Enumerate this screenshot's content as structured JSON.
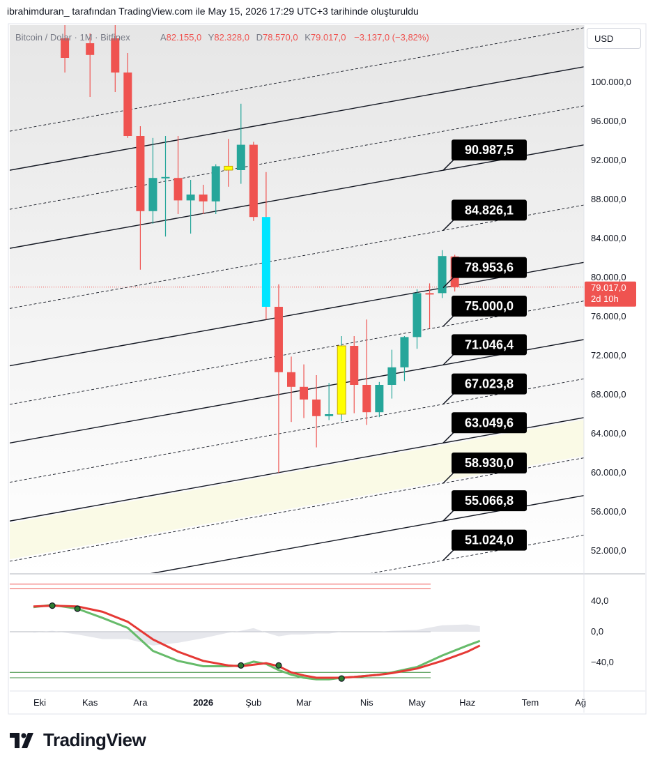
{
  "header": {
    "attribution": "ibrahimduran_ tarafından TradingView.com ile May 15, 2026 17:29 UTC+3 tarihinde oluşturuldu"
  },
  "legend": {
    "symbol": "Bitcoin / Dolar · 1M · Bitfinex",
    "a_label": "A",
    "a_value": "82.155,0",
    "y_label": "Y",
    "y_value": "82.328,0",
    "d_label": "D",
    "d_value": "78.570,0",
    "k_label": "K",
    "k_value": "79.017,0",
    "change": "−3.137,0 (−3,82%)"
  },
  "currency_button": "USD",
  "last_price": {
    "value": "79.017,0",
    "countdown": "2d 10h",
    "price": 79017
  },
  "colors": {
    "up": "#26a69a",
    "down": "#ef5350",
    "highlight_up": "#00e5ff",
    "highlight_yellow": "#ffff00",
    "label_bg": "#000000",
    "band_fill": "#fafae6",
    "rsi_green": "#66bb6a",
    "rsi_red": "#e53935"
  },
  "footer": {
    "brand": "TradingView",
    "icon": "tradingview-logo-icon"
  },
  "chart_data": {
    "type": "candlestick",
    "symbol": "Bitcoin / Dolar",
    "y_axis_ticks": [
      {
        "v": 100000,
        "label": "100.000,0"
      },
      {
        "v": 96000,
        "label": "96.000,0"
      },
      {
        "v": 92000,
        "label": "92.000,0"
      },
      {
        "v": 88000,
        "label": "88.000,0"
      },
      {
        "v": 84000,
        "label": "84.000,0"
      },
      {
        "v": 80000,
        "label": "80.000,0"
      },
      {
        "v": 76000,
        "label": "76.000,0"
      },
      {
        "v": 72000,
        "label": "72.000,0"
      },
      {
        "v": 68000,
        "label": "68.000,0"
      },
      {
        "v": 64000,
        "label": "64.000,0"
      },
      {
        "v": 60000,
        "label": "60.000,0"
      },
      {
        "v": 56000,
        "label": "56.000,0"
      },
      {
        "v": 52000,
        "label": "52.000,0"
      }
    ],
    "x_axis_ticks": [
      {
        "x": 0,
        "label": "Eki",
        "bold": false
      },
      {
        "x": 4,
        "label": "Kas",
        "bold": false
      },
      {
        "x": 8,
        "label": "Ara",
        "bold": false
      },
      {
        "x": 13,
        "label": "2026",
        "bold": true
      },
      {
        "x": 17,
        "label": "Şub",
        "bold": false
      },
      {
        "x": 21,
        "label": "Mar",
        "bold": false
      },
      {
        "x": 26,
        "label": "Nis",
        "bold": false
      },
      {
        "x": 30,
        "label": "May",
        "bold": false
      },
      {
        "x": 34,
        "label": "Haz",
        "bold": false
      },
      {
        "x": 39,
        "label": "Tem",
        "bold": false
      },
      {
        "x": 43,
        "label": "Ağ",
        "bold": false
      }
    ],
    "candles": [
      {
        "x": 2,
        "o": 104500,
        "h": 106000,
        "l": 101000,
        "c": 102500,
        "col": "down"
      },
      {
        "x": 4,
        "o": 104000,
        "h": 105000,
        "l": 98500,
        "c": 102800,
        "col": "down"
      },
      {
        "x": 6,
        "o": 104500,
        "h": 107000,
        "l": 99000,
        "c": 101000,
        "col": "down"
      },
      {
        "x": 7,
        "o": 101000,
        "h": 103000,
        "l": 94300,
        "c": 94500,
        "col": "down"
      },
      {
        "x": 8,
        "o": 94500,
        "h": 95500,
        "l": 80800,
        "c": 86800,
        "col": "down"
      },
      {
        "x": 9,
        "o": 86800,
        "h": 94300,
        "l": 85500,
        "c": 90200,
        "col": "up"
      },
      {
        "x": 10,
        "o": 90200,
        "h": 94500,
        "l": 84200,
        "c": 90300,
        "col": "up"
      },
      {
        "x": 11,
        "o": 90200,
        "h": 94500,
        "l": 86500,
        "c": 87900,
        "col": "down"
      },
      {
        "x": 12,
        "o": 87900,
        "h": 90000,
        "l": 84500,
        "c": 88500,
        "col": "up"
      },
      {
        "x": 13,
        "o": 88500,
        "h": 89500,
        "l": 86500,
        "c": 87800,
        "col": "down"
      },
      {
        "x": 14,
        "o": 87800,
        "h": 91600,
        "l": 86500,
        "c": 91400,
        "col": "up"
      },
      {
        "x": 15,
        "o": 91400,
        "h": 94200,
        "l": 89300,
        "c": 91000,
        "col": "yellow"
      },
      {
        "x": 16,
        "o": 91000,
        "h": 97800,
        "l": 89600,
        "c": 93600,
        "col": "up"
      },
      {
        "x": 17,
        "o": 93600,
        "h": 93900,
        "l": 85800,
        "c": 86200,
        "col": "down"
      },
      {
        "x": 18,
        "o": 77000,
        "h": 90800,
        "l": 75700,
        "c": 86200,
        "col": "cyan"
      },
      {
        "x": 19,
        "o": 77000,
        "h": 79300,
        "l": 60000,
        "c": 70300,
        "col": "down"
      },
      {
        "x": 20,
        "o": 70300,
        "h": 71900,
        "l": 65200,
        "c": 68800,
        "col": "down"
      },
      {
        "x": 21,
        "o": 68800,
        "h": 71100,
        "l": 65600,
        "c": 67500,
        "col": "down"
      },
      {
        "x": 22,
        "o": 67500,
        "h": 70000,
        "l": 62600,
        "c": 65800,
        "col": "down"
      },
      {
        "x": 23,
        "o": 65800,
        "h": 69200,
        "l": 65400,
        "c": 66000,
        "col": "up"
      },
      {
        "x": 24,
        "o": 66000,
        "h": 74000,
        "l": 65300,
        "c": 73000,
        "col": "yellow"
      },
      {
        "x": 25,
        "o": 73000,
        "h": 74000,
        "l": 66100,
        "c": 69000,
        "col": "down"
      },
      {
        "x": 26,
        "o": 69000,
        "h": 75700,
        "l": 64900,
        "c": 66200,
        "col": "down"
      },
      {
        "x": 27,
        "o": 66200,
        "h": 69300,
        "l": 65700,
        "c": 69000,
        "col": "up"
      },
      {
        "x": 28,
        "o": 69000,
        "h": 72600,
        "l": 67600,
        "c": 70800,
        "col": "up"
      },
      {
        "x": 29,
        "o": 70800,
        "h": 74000,
        "l": 69400,
        "c": 73900,
        "col": "up"
      },
      {
        "x": 30,
        "o": 73900,
        "h": 78800,
        "l": 72700,
        "c": 78400,
        "col": "up"
      },
      {
        "x": 31,
        "o": 78400,
        "h": 79400,
        "l": 74800,
        "c": 78400,
        "col": "down"
      },
      {
        "x": 32,
        "o": 78400,
        "h": 82800,
        "l": 77900,
        "c": 82200,
        "col": "up"
      },
      {
        "x": 33,
        "o": 82155,
        "h": 82328,
        "l": 78570,
        "c": 79017,
        "col": "down"
      }
    ],
    "channel_lines": [
      {
        "price_at_end": 90987.5,
        "label": "90.987,5",
        "style": "solid"
      },
      {
        "price_at_end": 84826.1,
        "label": "84.826,1",
        "style": "dashed"
      },
      {
        "price_at_end": 78953.6,
        "label": "78.953,6",
        "style": "solid"
      },
      {
        "price_at_end": 75000.0,
        "label": "75.000,0",
        "style": "dashed"
      },
      {
        "price_at_end": 71046.4,
        "label": "71.046,4",
        "style": "solid"
      },
      {
        "price_at_end": 67023.8,
        "label": "67.023,8",
        "style": "dashed"
      },
      {
        "price_at_end": 63049.6,
        "label": "63.049,6",
        "style": "solid"
      },
      {
        "price_at_end": 58930.0,
        "label": "58.930,0",
        "style": "dashed"
      },
      {
        "price_at_end": 55066.8,
        "label": "55.066,8",
        "style": "solid"
      },
      {
        "price_at_end": 51024.0,
        "label": "51.024,0",
        "style": "dashed"
      }
    ],
    "oscillator": {
      "y_axis_ticks": [
        {
          "v": 40,
          "label": "40,0"
        },
        {
          "v": 0,
          "label": "0,0"
        },
        {
          "v": -40,
          "label": "−40,0"
        }
      ],
      "upper_levels": [
        62,
        56
      ],
      "lower_levels": [
        -53,
        -60
      ],
      "green": [
        [
          -0.5,
          32
        ],
        [
          1,
          35
        ],
        [
          3,
          30
        ],
        [
          5,
          18
        ],
        [
          7,
          5
        ],
        [
          9,
          -25
        ],
        [
          11,
          -38
        ],
        [
          13,
          -45
        ],
        [
          15,
          -45
        ],
        [
          16,
          -44
        ],
        [
          17,
          -39
        ],
        [
          18,
          -42
        ],
        [
          19,
          -50
        ],
        [
          20,
          -56
        ],
        [
          21,
          -60
        ],
        [
          22,
          -62
        ],
        [
          23,
          -62
        ],
        [
          24,
          -60
        ],
        [
          25,
          -59
        ],
        [
          27,
          -56
        ],
        [
          28,
          -53
        ],
        [
          30,
          -46
        ],
        [
          32,
          -31
        ],
        [
          34,
          -18
        ],
        [
          35,
          -12
        ]
      ],
      "red": [
        [
          -0.5,
          33
        ],
        [
          1,
          34
        ],
        [
          3,
          33
        ],
        [
          5,
          26
        ],
        [
          7,
          13
        ],
        [
          9,
          -10
        ],
        [
          11,
          -26
        ],
        [
          13,
          -38
        ],
        [
          15,
          -44
        ],
        [
          16,
          -45
        ],
        [
          17,
          -43
        ],
        [
          18,
          -41
        ],
        [
          19,
          -45
        ],
        [
          20,
          -53
        ],
        [
          21,
          -57
        ],
        [
          22,
          -60
        ],
        [
          23,
          -60
        ],
        [
          24,
          -60
        ],
        [
          25,
          -59
        ],
        [
          27,
          -56
        ],
        [
          28,
          -54
        ],
        [
          30,
          -48
        ],
        [
          32,
          -38
        ],
        [
          34,
          -26
        ],
        [
          35,
          -18
        ]
      ],
      "markers": [
        {
          "x": 1,
          "v": 34
        },
        {
          "x": 3,
          "v": 30
        },
        {
          "x": 16,
          "v": -44
        },
        {
          "x": 19,
          "v": -44
        },
        {
          "x": 24,
          "v": -61
        }
      ]
    }
  }
}
